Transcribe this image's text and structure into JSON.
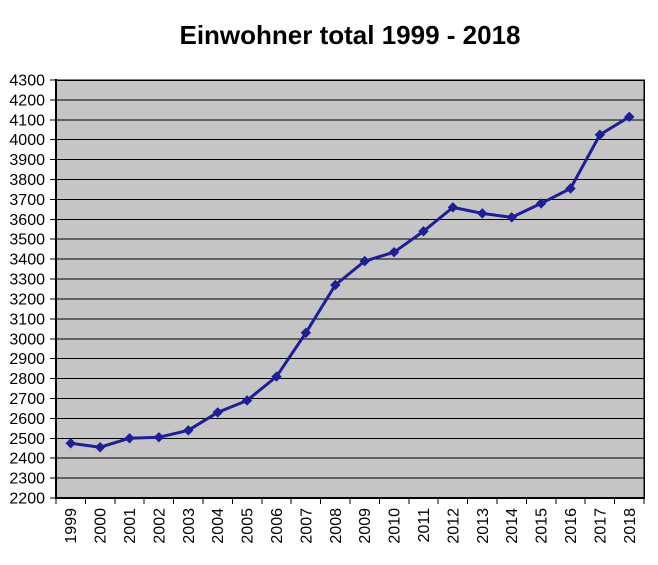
{
  "title": "Einwohner total 1999 - 2018",
  "chart_data": {
    "type": "line",
    "title": "Einwohner total 1999 - 2018",
    "categories": [
      "1999",
      "2000",
      "2001",
      "2002",
      "2003",
      "2004",
      "2005",
      "2006",
      "2007",
      "2008",
      "2009",
      "2010",
      "2011",
      "2012",
      "2013",
      "2014",
      "2015",
      "2016",
      "2017",
      "2018"
    ],
    "values": [
      2475,
      2455,
      2500,
      2505,
      2540,
      2630,
      2690,
      2810,
      3030,
      3270,
      3390,
      3435,
      3540,
      3660,
      3630,
      3610,
      3680,
      3755,
      4025,
      4115
    ],
    "xlabel": "",
    "ylabel": "",
    "ylim": [
      2200,
      4300
    ],
    "ytick_step": 100,
    "grid": true,
    "legend": false,
    "marker": "diamond",
    "colors": {
      "line": "#1E1E96",
      "marker": "#1E1E96",
      "plot_background": "#C5C5C5",
      "gridline": "#000000",
      "axis": "#000000",
      "text": "#000000",
      "page_background": "#FFFFFF"
    }
  }
}
